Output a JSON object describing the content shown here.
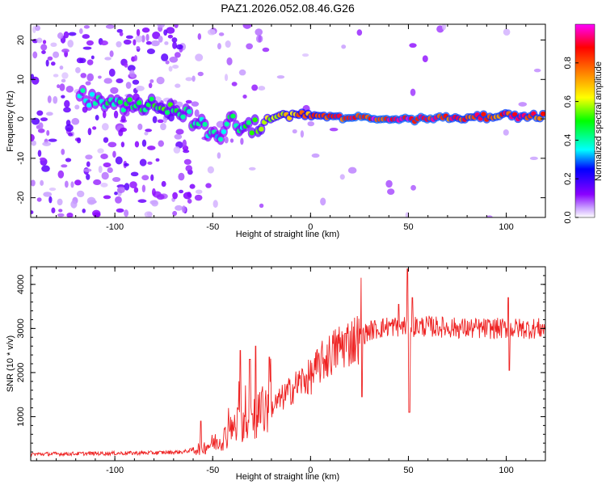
{
  "figure_title": "PAZ1.2026.052.08.46.G26",
  "chart_data": [
    {
      "type": "heatmap",
      "panel": "spectrogram",
      "title": "PAZ1.2026.052.08.46.G26",
      "xlabel": "Height of straight line (km)",
      "ylabel": "Frequency (Hz)",
      "xlim": [
        -143,
        120
      ],
      "ylim": [
        -25,
        24
      ],
      "x_ticks": [
        -100,
        -50,
        0,
        50,
        100
      ],
      "y_ticks": [
        20,
        10,
        0,
        -10,
        -20
      ],
      "colorbar": {
        "label": "Normalized spectral amplitude",
        "range": [
          0.0,
          1.0
        ],
        "ticks": [
          "0.0",
          "0.2",
          "0.4",
          "0.6",
          "0.8"
        ],
        "colormap": [
          "#ffffff",
          "#8a00ff",
          "#0000ff",
          "#00ffff",
          "#00ff00",
          "#ffff00",
          "#ff8000",
          "#ff0000",
          "#ff00ff"
        ]
      },
      "ridge": {
        "description": "dominant frequency vs height",
        "x": [
          -115,
          -105,
          -95,
          -85,
          -75,
          -68,
          -62,
          -56,
          -50,
          -45,
          -40,
          -35,
          -30,
          -25,
          -20,
          -15,
          -10,
          0,
          10,
          20,
          40,
          60,
          80,
          100,
          120
        ],
        "y": [
          5,
          4,
          4,
          3,
          3,
          2,
          0,
          -2,
          -4,
          -3,
          -1,
          -2,
          -2,
          -1,
          0,
          1,
          1,
          1,
          0.5,
          0.2,
          0,
          0.2,
          0.5,
          1,
          0.5
        ],
        "amplitude": [
          0.4,
          0.45,
          0.45,
          0.5,
          0.55,
          0.5,
          0.45,
          0.45,
          0.4,
          0.4,
          0.45,
          0.45,
          0.5,
          0.6,
          0.65,
          0.7,
          0.75,
          0.85,
          0.9,
          0.95,
          0.95,
          0.95,
          0.9,
          0.9,
          0.9
        ]
      }
    },
    {
      "type": "line",
      "panel": "snr",
      "xlabel": "Height of straight line (km)",
      "ylabel": "SNR (10 * v/v)",
      "xlim": [
        -143,
        120
      ],
      "ylim": [
        0,
        4400
      ],
      "x_ticks": [
        -100,
        -50,
        0,
        50,
        100
      ],
      "y_ticks": [
        1000,
        2000,
        3000,
        4000
      ],
      "series": [
        {
          "name": "SNR",
          "color": "#ee2222",
          "trend_x": [
            -143,
            -120,
            -100,
            -80,
            -65,
            -55,
            -45,
            -40,
            -35,
            -30,
            -25,
            -20,
            -15,
            -10,
            -5,
            0,
            5,
            10,
            15,
            20,
            25,
            30,
            35,
            40,
            50,
            60,
            80,
            100,
            120
          ],
          "trend_y": [
            150,
            160,
            170,
            180,
            200,
            300,
            500,
            700,
            900,
            1000,
            1100,
            1200,
            1400,
            1600,
            1800,
            1900,
            2200,
            2400,
            2600,
            2700,
            2800,
            2950,
            3000,
            3050,
            3050,
            3050,
            3000,
            3000,
            3000
          ],
          "spikes": [
            {
              "x": -56,
              "y": 900
            },
            {
              "x": -36,
              "y": 2500
            },
            {
              "x": -31,
              "y": 2300
            },
            {
              "x": -28,
              "y": 2600
            },
            {
              "x": -21,
              "y": 2350
            },
            {
              "x": 26,
              "y": 4150
            },
            {
              "x": 26.3,
              "y": 1450
            },
            {
              "x": 45,
              "y": 3550
            },
            {
              "x": 49.5,
              "y": 4350
            },
            {
              "x": 50.5,
              "y": 1100
            },
            {
              "x": 52,
              "y": 3700
            },
            {
              "x": 101,
              "y": 3700
            },
            {
              "x": 101.5,
              "y": 2050
            }
          ]
        }
      ]
    }
  ]
}
